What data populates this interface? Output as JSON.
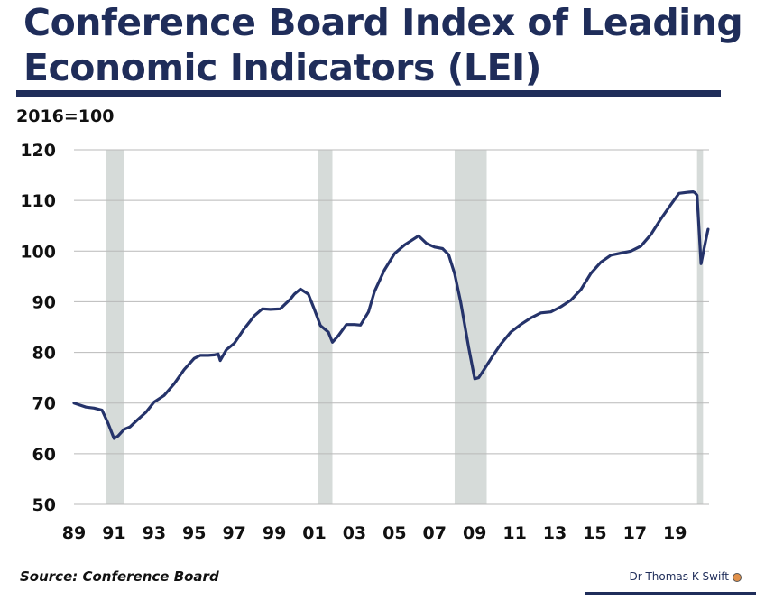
{
  "header": {
    "title_line1": "Conference Board Index of Leading",
    "title_line2": "Economic Indicators (LEI)"
  },
  "footer": {
    "source": "Source: Conference Board",
    "author": "Dr Thomas K Swift"
  },
  "colors": {
    "line": "#25336a",
    "recession": "#d6dbd9",
    "grid": "#b9b9b9",
    "title": "#1f2d5a"
  },
  "chart_data": {
    "type": "line",
    "title": "Conference Board Index of Leading Economic Indicators (LEI)",
    "ylabel": "2016=100",
    "xlabel": "",
    "ylim": [
      50,
      120
    ],
    "yticks": [
      50,
      60,
      70,
      80,
      90,
      100,
      110,
      120
    ],
    "xlim": [
      1989.0,
      2020.7
    ],
    "xticks": [
      {
        "value": 1989,
        "label": "89"
      },
      {
        "value": 1991,
        "label": "91"
      },
      {
        "value": 1993,
        "label": "93"
      },
      {
        "value": 1995,
        "label": "95"
      },
      {
        "value": 1997,
        "label": "97"
      },
      {
        "value": 1999,
        "label": "99"
      },
      {
        "value": 2001,
        "label": "01"
      },
      {
        "value": 2003,
        "label": "03"
      },
      {
        "value": 2005,
        "label": "05"
      },
      {
        "value": 2007,
        "label": "07"
      },
      {
        "value": 2009,
        "label": "09"
      },
      {
        "value": 2011,
        "label": "11"
      },
      {
        "value": 2013,
        "label": "13"
      },
      {
        "value": 2015,
        "label": "15"
      },
      {
        "value": 2017,
        "label": "17"
      },
      {
        "value": 2019,
        "label": "19"
      }
    ],
    "grid": "horizontal",
    "recessions": [
      [
        1990.6,
        1991.5
      ],
      [
        2001.2,
        2001.9
      ],
      [
        2008.0,
        2009.6
      ],
      [
        2020.1,
        2020.4
      ]
    ],
    "series": [
      {
        "name": "LEI (2016=100)",
        "x": [
          1989.0,
          1989.3,
          1989.6,
          1990.0,
          1990.4,
          1990.7,
          1991.0,
          1991.2,
          1991.5,
          1991.8,
          1992.2,
          1992.6,
          1993.0,
          1993.5,
          1994.0,
          1994.5,
          1995.0,
          1995.3,
          1995.7,
          1996.0,
          1996.2,
          1996.3,
          1996.6,
          1997.0,
          1997.5,
          1998.0,
          1998.4,
          1998.8,
          1999.3,
          1999.8,
          2000.0,
          2000.3,
          2000.7,
          2001.0,
          2001.3,
          2001.7,
          2001.9,
          2002.2,
          2002.6,
          2003.0,
          2003.3,
          2003.7,
          2004.0,
          2004.5,
          2005.0,
          2005.5,
          2006.0,
          2006.2,
          2006.6,
          2007.0,
          2007.4,
          2007.7,
          2008.0,
          2008.3,
          2008.7,
          2009.0,
          2009.2,
          2009.5,
          2009.9,
          2010.3,
          2010.8,
          2011.3,
          2011.8,
          2012.3,
          2012.8,
          2013.3,
          2013.8,
          2014.3,
          2014.8,
          2015.3,
          2015.8,
          2016.3,
          2016.8,
          2017.3,
          2017.8,
          2018.3,
          2018.8,
          2019.2,
          2019.6,
          2019.9,
          2020.0,
          2020.1,
          2020.3,
          2020.5,
          2020.65
        ],
        "values": [
          70.0,
          69.6,
          69.2,
          69.0,
          68.6,
          66.0,
          63.0,
          63.5,
          64.8,
          65.3,
          66.8,
          68.2,
          70.2,
          71.5,
          73.8,
          76.6,
          78.8,
          79.4,
          79.4,
          79.5,
          79.7,
          78.4,
          80.5,
          81.8,
          84.7,
          87.2,
          88.6,
          88.5,
          88.6,
          90.5,
          91.5,
          92.5,
          91.5,
          88.5,
          85.3,
          84.0,
          82.0,
          83.3,
          85.5,
          85.5,
          85.4,
          88.0,
          92.0,
          96.3,
          99.5,
          101.2,
          102.5,
          103.0,
          101.5,
          100.8,
          100.5,
          99.3,
          95.5,
          90.0,
          81.0,
          74.8,
          75.0,
          76.8,
          79.3,
          81.6,
          84.0,
          85.5,
          86.8,
          87.8,
          88.0,
          89.0,
          90.3,
          92.4,
          95.6,
          97.8,
          99.2,
          99.6,
          100.0,
          101.0,
          103.3,
          106.4,
          109.2,
          111.4,
          111.6,
          111.7,
          111.5,
          111.0,
          97.5,
          101.5,
          104.3
        ]
      }
    ]
  }
}
